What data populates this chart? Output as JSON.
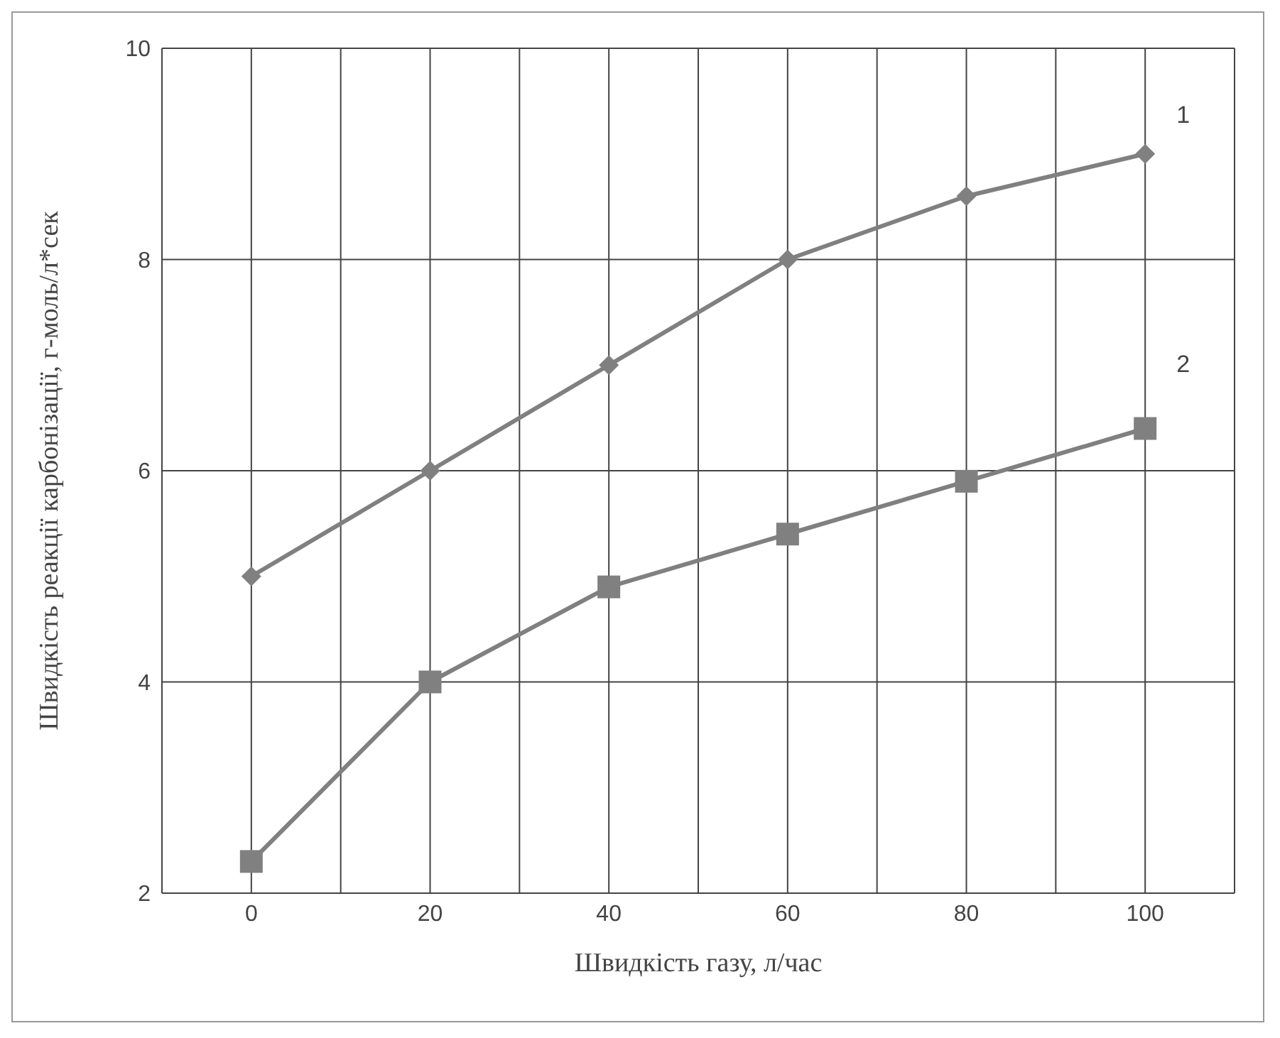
{
  "chart_data": {
    "type": "line",
    "xlabel": "Швидкість газу, л/час",
    "ylabel": "Швидкість реакції карбонізації, г-моль/л*сек",
    "x": [
      0,
      20,
      40,
      60,
      80,
      100
    ],
    "series": [
      {
        "name": "1",
        "color": "#808080",
        "marker": "diamond",
        "values": [
          5,
          6,
          7,
          8,
          8.6,
          9
        ]
      },
      {
        "name": "2",
        "color": "#808080",
        "marker": "square",
        "values": [
          2.3,
          4,
          4.9,
          5.4,
          5.9,
          6.4
        ]
      }
    ],
    "xlim": [
      -10,
      110
    ],
    "xticks": [
      {
        "value": -10,
        "label": null
      },
      0,
      {
        "value": 10,
        "label": null
      },
      20,
      {
        "value": 30,
        "label": null
      },
      40,
      {
        "value": 50,
        "label": null
      },
      60,
      {
        "value": 70,
        "label": null
      },
      80,
      {
        "value": 90,
        "label": null
      },
      100,
      {
        "value": 110,
        "label": null
      }
    ],
    "ylim": [
      2,
      10
    ],
    "yticks": [
      2,
      4,
      6,
      8,
      10
    ],
    "grid": true,
    "line_style": "solid"
  }
}
